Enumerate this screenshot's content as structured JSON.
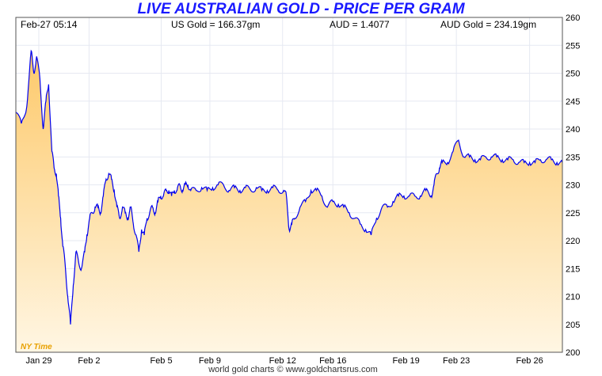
{
  "chart_data": {
    "type": "area",
    "title": "LIVE AUSTRALIAN GOLD - PRICE PER GRAM",
    "header": {
      "datetime": "Feb-27  05:14",
      "us_gold": "US Gold = 166.37gm",
      "aud_rate": "AUD = 1.4077",
      "aud_gold": "AUD Gold = 234.19gm"
    },
    "timezone_note": "NY Time",
    "footer": "world gold charts © www.goldchartsrus.com",
    "ylim": [
      200,
      260
    ],
    "y_ticks": [
      200,
      205,
      210,
      215,
      220,
      225,
      230,
      235,
      240,
      245,
      250,
      255,
      260
    ],
    "x_tick_labels": [
      "Jan 29",
      "Feb 2",
      "Feb 5",
      "Feb 9",
      "Feb 12",
      "Feb 16",
      "Feb 19",
      "Feb 23",
      "Feb 26"
    ],
    "x_tick_positions": [
      0.042,
      0.134,
      0.266,
      0.355,
      0.488,
      0.58,
      0.714,
      0.806,
      0.94
    ],
    "grid": true,
    "line_color": "#0000ee",
    "fill_top_color": "#fdc96a",
    "fill_bottom_color": "#fff6e3",
    "series": [
      {
        "x": [
          0.0,
          0.01,
          0.02,
          0.028,
          0.033,
          0.038,
          0.044,
          0.05,
          0.055,
          0.06,
          0.066,
          0.07,
          0.074,
          0.078,
          0.082,
          0.086,
          0.09,
          0.095,
          0.1,
          0.105,
          0.11,
          0.115,
          0.12,
          0.126,
          0.13,
          0.135,
          0.14,
          0.145,
          0.15,
          0.155,
          0.16,
          0.165,
          0.17,
          0.175,
          0.18,
          0.185,
          0.19,
          0.195,
          0.2,
          0.205,
          0.21,
          0.215,
          0.22,
          0.225,
          0.23,
          0.235,
          0.24,
          0.245,
          0.25,
          0.255,
          0.26,
          0.265,
          0.27,
          0.275,
          0.28,
          0.285,
          0.29,
          0.295,
          0.3,
          0.305,
          0.31,
          0.315,
          0.32,
          0.33,
          0.34,
          0.35,
          0.36,
          0.37,
          0.38,
          0.39,
          0.4,
          0.41,
          0.42,
          0.43,
          0.44,
          0.45,
          0.46,
          0.47,
          0.48,
          0.49,
          0.495,
          0.5,
          0.505,
          0.51,
          0.52,
          0.53,
          0.54,
          0.55,
          0.56,
          0.57,
          0.58,
          0.59,
          0.6,
          0.61,
          0.62,
          0.63,
          0.64,
          0.65,
          0.66,
          0.67,
          0.68,
          0.69,
          0.7,
          0.71,
          0.72,
          0.73,
          0.74,
          0.75,
          0.76,
          0.765,
          0.77,
          0.775,
          0.78,
          0.79,
          0.8,
          0.81,
          0.82,
          0.83,
          0.84,
          0.85,
          0.86,
          0.87,
          0.88,
          0.89,
          0.9,
          0.91,
          0.92,
          0.93,
          0.94,
          0.95,
          0.96,
          0.97,
          0.98,
          0.99,
          1.0
        ],
        "y": [
          243,
          241,
          244,
          254,
          250,
          253,
          249,
          240,
          245,
          248,
          236,
          233,
          232,
          228,
          224,
          219,
          216,
          210,
          205,
          212,
          218,
          216,
          215,
          218,
          221,
          224,
          225,
          226,
          226,
          225,
          228,
          231,
          232,
          231,
          229,
          226,
          224,
          226,
          225,
          224,
          226,
          223,
          221,
          218,
          222,
          221,
          224,
          225,
          226,
          225,
          227,
          228,
          228,
          229,
          229,
          228,
          229,
          229,
          230,
          229,
          230,
          230,
          229,
          229,
          229.5,
          229,
          229.5,
          230,
          230,
          229,
          229.5,
          229,
          229.5,
          229,
          229.5,
          229,
          229,
          229.5,
          229,
          229,
          228,
          222,
          223,
          224,
          226,
          227,
          229,
          229,
          228,
          226,
          227,
          226.5,
          226,
          225,
          224,
          223,
          222,
          221,
          224,
          226,
          226,
          227,
          228,
          228,
          228,
          228,
          228,
          229,
          228,
          230,
          232,
          233,
          234,
          234,
          236,
          238,
          235,
          235,
          234.5,
          234.5,
          235,
          235,
          235,
          234.5,
          234.5,
          234.5,
          234,
          234,
          234,
          234,
          234.5,
          234.5,
          234.5,
          234,
          234
        ]
      }
    ]
  }
}
